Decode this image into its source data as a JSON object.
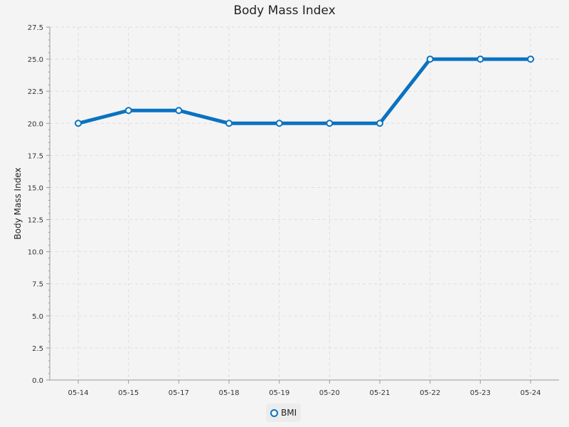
{
  "chart_data": {
    "type": "line",
    "title": "Body Mass Index",
    "xlabel": "",
    "ylabel": "Body Mass Index",
    "categories": [
      "05-14",
      "05-15",
      "05-17",
      "05-18",
      "05-19",
      "05-20",
      "05-21",
      "05-22",
      "05-23",
      "05-24"
    ],
    "series": [
      {
        "name": "BMI",
        "values": [
          20.0,
          21.0,
          21.0,
          20.0,
          20.0,
          20.0,
          20.0,
          25.0,
          25.0,
          25.0
        ]
      }
    ],
    "ylim": [
      0,
      27.5
    ],
    "ytick_labels": [
      "0.0",
      "2.5",
      "5.0",
      "7.5",
      "10.0",
      "12.5",
      "15.0",
      "17.5",
      "20.0",
      "22.5",
      "25.0",
      "27.5"
    ],
    "grid": true,
    "legend_position": "bottom-center",
    "colors": {
      "series": "#0a72c1",
      "marker_fill": "#ffffff",
      "grid": "#dddddd",
      "axis": "#999999"
    }
  }
}
